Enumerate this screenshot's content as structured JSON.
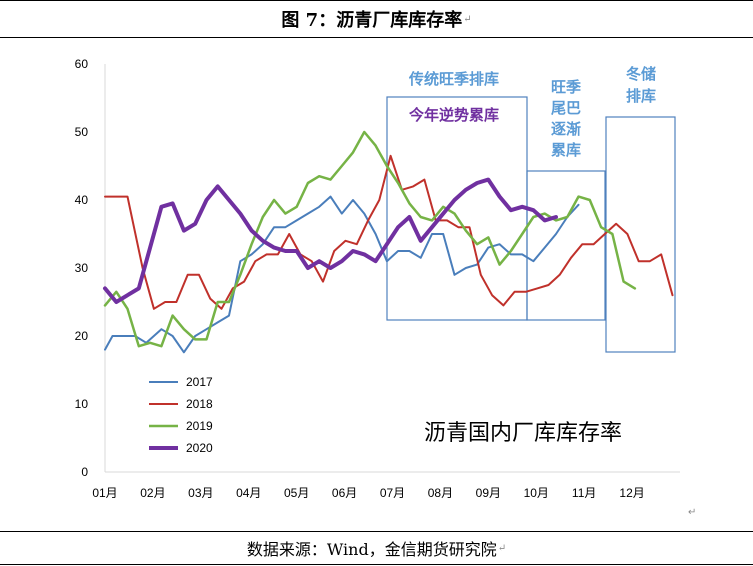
{
  "figure": {
    "title": "图 7：沥青厂库库存率",
    "title_mark": "↵",
    "source": "数据来源：Wind，金信期货研究院",
    "source_mark": "↵",
    "stray_mark": "↵"
  },
  "chart_data": {
    "type": "line",
    "title": "沥青国内厂库库存率",
    "xlabel": "",
    "ylabel": "",
    "ylim": [
      0,
      60
    ],
    "yticks": [
      "0",
      "10",
      "20",
      "30",
      "40",
      "50",
      "60"
    ],
    "xticks": [
      "01月",
      "02月",
      "03月",
      "04月",
      "05月",
      "06月",
      "07月",
      "08月",
      "09月",
      "10月",
      "11月",
      "12月"
    ],
    "grid": false,
    "legend_position": "bottom-left",
    "series": [
      {
        "name": "2017",
        "color": "#4a7ebb",
        "width": 2,
        "values": [
          [
            1.0,
            18.0
          ],
          [
            1.2,
            20.0
          ],
          [
            1.5,
            20.0
          ],
          [
            1.8,
            20.0
          ],
          [
            2.1,
            19.0
          ],
          [
            2.5,
            21.0
          ],
          [
            2.8,
            20.0
          ],
          [
            3.1,
            17.6
          ],
          [
            3.4,
            20.0
          ],
          [
            3.7,
            21.0
          ],
          [
            4.0,
            22.0
          ],
          [
            4.3,
            23.0
          ],
          [
            4.6,
            31.0
          ],
          [
            4.9,
            32.0
          ],
          [
            5.2,
            33.5
          ],
          [
            5.5,
            36.0
          ],
          [
            5.8,
            36.0
          ],
          [
            6.1,
            37.0
          ],
          [
            6.4,
            38.0
          ],
          [
            6.7,
            39.0
          ],
          [
            7.0,
            40.5
          ],
          [
            7.3,
            38.0
          ],
          [
            7.6,
            40.0
          ],
          [
            7.9,
            38.0
          ],
          [
            8.2,
            35.0
          ],
          [
            8.5,
            31.0
          ],
          [
            8.8,
            32.5
          ],
          [
            9.1,
            32.5
          ],
          [
            9.4,
            31.5
          ],
          [
            9.7,
            35.0
          ],
          [
            10.0,
            35.0
          ],
          [
            10.3,
            29.0
          ],
          [
            10.6,
            30.0
          ],
          [
            10.9,
            30.5
          ],
          [
            11.2,
            33.0
          ],
          [
            11.5,
            33.5
          ],
          [
            11.8,
            32.0
          ],
          [
            12.1,
            32.0
          ],
          [
            12.4,
            31.0
          ],
          [
            12.7,
            33.0
          ],
          [
            13.0,
            35.0
          ],
          [
            13.3,
            37.5
          ],
          [
            13.6,
            39.3
          ]
        ]
      },
      {
        "name": "2018",
        "color": "#c0312b",
        "width": 2,
        "values": [
          [
            1.0,
            40.5
          ],
          [
            1.3,
            40.5
          ],
          [
            1.6,
            40.5
          ],
          [
            2.0,
            30.0
          ],
          [
            2.3,
            24.0
          ],
          [
            2.6,
            25.0
          ],
          [
            2.9,
            25.0
          ],
          [
            3.2,
            29.0
          ],
          [
            3.5,
            29.0
          ],
          [
            3.8,
            25.5
          ],
          [
            4.1,
            24.0
          ],
          [
            4.4,
            27.0
          ],
          [
            4.7,
            28.0
          ],
          [
            5.0,
            31.0
          ],
          [
            5.3,
            32.0
          ],
          [
            5.6,
            32.0
          ],
          [
            5.9,
            35.0
          ],
          [
            6.2,
            32.0
          ],
          [
            6.5,
            31.0
          ],
          [
            6.8,
            28.0
          ],
          [
            7.1,
            32.5
          ],
          [
            7.4,
            34.0
          ],
          [
            7.7,
            33.5
          ],
          [
            8.0,
            37.0
          ],
          [
            8.3,
            40.0
          ],
          [
            8.6,
            46.5
          ],
          [
            8.9,
            41.5
          ],
          [
            9.2,
            42.0
          ],
          [
            9.5,
            43.0
          ],
          [
            9.8,
            37.0
          ],
          [
            10.1,
            37.0
          ],
          [
            10.4,
            36.0
          ],
          [
            10.7,
            36.0
          ],
          [
            11.0,
            29.0
          ],
          [
            11.3,
            26.0
          ],
          [
            11.6,
            24.5
          ],
          [
            11.9,
            26.5
          ],
          [
            12.2,
            26.5
          ],
          [
            12.5,
            27.0
          ],
          [
            12.8,
            27.5
          ],
          [
            13.1,
            29.0
          ],
          [
            13.4,
            31.5
          ],
          [
            13.7,
            33.5
          ],
          [
            14.0,
            33.5
          ],
          [
            14.3,
            35.0
          ],
          [
            14.6,
            36.5
          ],
          [
            14.9,
            35.0
          ],
          [
            15.2,
            31.0
          ],
          [
            15.5,
            31.0
          ],
          [
            15.8,
            32.0
          ],
          [
            16.1,
            26.0
          ]
        ]
      },
      {
        "name": "2019",
        "color": "#76b346",
        "width": 2.5,
        "values": [
          [
            1.0,
            24.5
          ],
          [
            1.3,
            26.5
          ],
          [
            1.6,
            24.0
          ],
          [
            1.9,
            18.5
          ],
          [
            2.2,
            19.0
          ],
          [
            2.5,
            18.5
          ],
          [
            2.8,
            23.0
          ],
          [
            3.1,
            21.0
          ],
          [
            3.4,
            19.5
          ],
          [
            3.7,
            19.5
          ],
          [
            4.0,
            25.0
          ],
          [
            4.3,
            25.0
          ],
          [
            4.6,
            29.0
          ],
          [
            4.9,
            33.5
          ],
          [
            5.2,
            37.5
          ],
          [
            5.5,
            40.0
          ],
          [
            5.8,
            38.0
          ],
          [
            6.1,
            39.0
          ],
          [
            6.4,
            42.5
          ],
          [
            6.7,
            43.5
          ],
          [
            7.0,
            43.0
          ],
          [
            7.3,
            45.0
          ],
          [
            7.6,
            47.0
          ],
          [
            7.9,
            50.0
          ],
          [
            8.2,
            48.0
          ],
          [
            8.5,
            45.0
          ],
          [
            8.8,
            42.5
          ],
          [
            9.1,
            39.5
          ],
          [
            9.4,
            37.5
          ],
          [
            9.7,
            37.0
          ],
          [
            10.0,
            39.0
          ],
          [
            10.3,
            38.0
          ],
          [
            10.6,
            35.5
          ],
          [
            10.9,
            33.5
          ],
          [
            11.2,
            34.5
          ],
          [
            11.5,
            30.5
          ],
          [
            11.8,
            32.5
          ],
          [
            12.1,
            35.0
          ],
          [
            12.4,
            37.5
          ],
          [
            12.7,
            38.0
          ],
          [
            13.0,
            37.0
          ],
          [
            13.3,
            37.5
          ],
          [
            13.6,
            40.5
          ],
          [
            13.9,
            40.0
          ],
          [
            14.2,
            36.0
          ],
          [
            14.5,
            35.0
          ],
          [
            14.8,
            28.0
          ],
          [
            15.1,
            27.0
          ]
        ]
      },
      {
        "name": "2020",
        "color": "#7030a0",
        "width": 4,
        "values": [
          [
            1.0,
            27.0
          ],
          [
            1.3,
            25.0
          ],
          [
            1.6,
            26.0
          ],
          [
            1.9,
            27.0
          ],
          [
            2.2,
            33.0
          ],
          [
            2.5,
            39.0
          ],
          [
            2.8,
            39.5
          ],
          [
            3.1,
            35.5
          ],
          [
            3.4,
            36.5
          ],
          [
            3.7,
            40.0
          ],
          [
            4.0,
            42.0
          ],
          [
            4.3,
            40.0
          ],
          [
            4.6,
            38.0
          ],
          [
            4.9,
            35.5
          ],
          [
            5.2,
            34.0
          ],
          [
            5.5,
            33.0
          ],
          [
            5.8,
            32.5
          ],
          [
            6.1,
            32.5
          ],
          [
            6.4,
            30.0
          ],
          [
            6.7,
            31.0
          ],
          [
            7.0,
            30.0
          ],
          [
            7.3,
            31.0
          ],
          [
            7.6,
            32.5
          ],
          [
            7.9,
            32.0
          ],
          [
            8.2,
            31.0
          ],
          [
            8.5,
            33.5
          ],
          [
            8.8,
            36.0
          ],
          [
            9.1,
            37.5
          ],
          [
            9.4,
            34.0
          ],
          [
            9.7,
            36.0
          ],
          [
            10.0,
            38.0
          ],
          [
            10.3,
            40.0
          ],
          [
            10.6,
            41.5
          ],
          [
            10.9,
            42.5
          ],
          [
            11.2,
            43.0
          ],
          [
            11.5,
            40.5
          ],
          [
            11.8,
            38.5
          ],
          [
            12.1,
            39.0
          ],
          [
            12.4,
            38.5
          ],
          [
            12.7,
            37.0
          ],
          [
            13.0,
            37.5
          ]
        ]
      }
    ],
    "annotations": [
      {
        "label": "传统旺季排库",
        "color": "#5b9bd5"
      },
      {
        "label": "今年逆势累库",
        "color": "#7030a0"
      },
      {
        "label": "旺季 尾巴 逐渐 累库",
        "color": "#5b9bd5"
      },
      {
        "label": "冬储 排库",
        "color": "#5b9bd5"
      }
    ]
  }
}
